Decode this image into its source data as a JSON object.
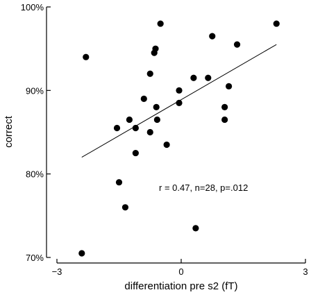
{
  "chart_data": {
    "type": "scatter",
    "xlabel": "differentiation pre s2 (fT)",
    "ylabel": "correct",
    "xlim": [
      -3,
      3
    ],
    "ylim": [
      70,
      100
    ],
    "x_ticks": [
      {
        "value": -3,
        "label": "−3"
      },
      {
        "value": 0,
        "label": "0"
      },
      {
        "value": 3,
        "label": "3"
      }
    ],
    "y_ticks": [
      {
        "value": 70,
        "label": "70%"
      },
      {
        "value": 80,
        "label": "80%"
      },
      {
        "value": 90,
        "label": "90%"
      },
      {
        "value": 100,
        "label": "100%"
      }
    ],
    "annotation": "r = 0.47, n=28, p=.012",
    "grid": false,
    "point_color": "#000000",
    "regression_line": {
      "x": [
        -2.4,
        2.3
      ],
      "y": [
        82.0,
        95.5
      ]
    },
    "points": [
      {
        "x": -2.4,
        "y": 70.5
      },
      {
        "x": -2.3,
        "y": 94.0
      },
      {
        "x": -1.55,
        "y": 85.5
      },
      {
        "x": -1.5,
        "y": 79.0
      },
      {
        "x": -1.35,
        "y": 76.0
      },
      {
        "x": -1.25,
        "y": 86.5
      },
      {
        "x": -1.1,
        "y": 85.5
      },
      {
        "x": -1.1,
        "y": 82.5
      },
      {
        "x": -0.9,
        "y": 89.0
      },
      {
        "x": -0.75,
        "y": 92.0
      },
      {
        "x": -0.75,
        "y": 85.0
      },
      {
        "x": -0.65,
        "y": 94.5
      },
      {
        "x": -0.62,
        "y": 95.0
      },
      {
        "x": -0.6,
        "y": 88.0
      },
      {
        "x": -0.58,
        "y": 86.5
      },
      {
        "x": -0.5,
        "y": 98.0
      },
      {
        "x": -0.35,
        "y": 83.5
      },
      {
        "x": -0.05,
        "y": 90.0
      },
      {
        "x": -0.05,
        "y": 88.5
      },
      {
        "x": 0.3,
        "y": 91.5
      },
      {
        "x": 0.35,
        "y": 73.5
      },
      {
        "x": 0.65,
        "y": 91.5
      },
      {
        "x": 0.75,
        "y": 96.5
      },
      {
        "x": 1.05,
        "y": 88.0
      },
      {
        "x": 1.05,
        "y": 86.5
      },
      {
        "x": 1.15,
        "y": 90.5
      },
      {
        "x": 1.35,
        "y": 95.5
      },
      {
        "x": 2.3,
        "y": 98.0
      }
    ]
  }
}
